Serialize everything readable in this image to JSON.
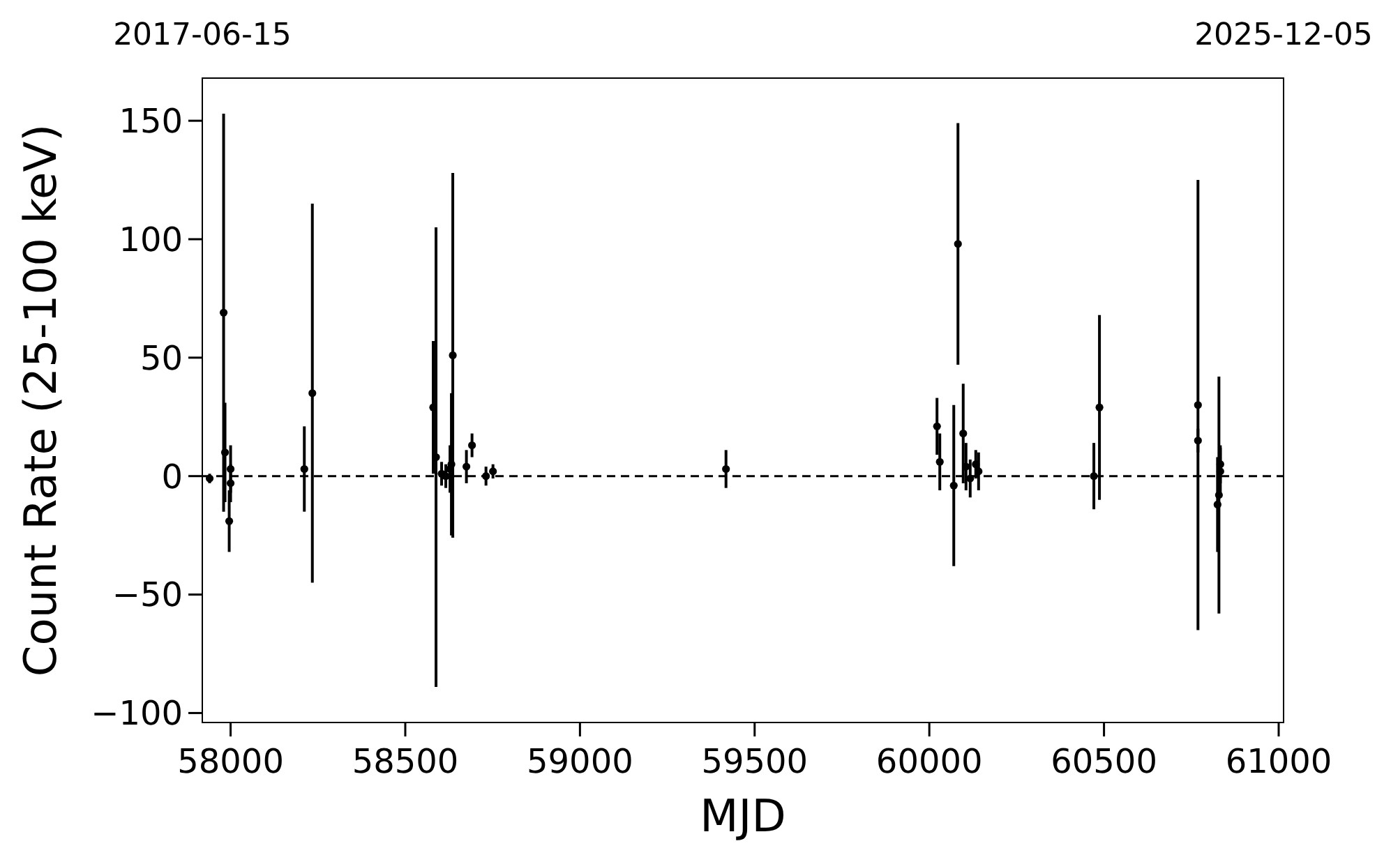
{
  "chart_data": {
    "type": "scatter",
    "xlabel": "MJD",
    "ylabel": "Count Rate (25-100 keV)",
    "xlim": [
      57919,
      61014
    ],
    "ylim": [
      -104,
      168
    ],
    "xticks": [
      58000,
      58500,
      59000,
      59500,
      60000,
      60500,
      61000
    ],
    "yticks": [
      -100,
      -50,
      0,
      50,
      100,
      150
    ],
    "x2lim": [
      "2017-06-15",
      "2025-12-05"
    ],
    "x2ticks": [
      "2017-06-15",
      "2025-12-05"
    ],
    "grid": false,
    "marker": "circle",
    "ref_lines": [
      {
        "axis": "y",
        "value": 0,
        "line_style": "dashed",
        "color": "#000000"
      }
    ],
    "series": [
      {
        "color": "#000000",
        "x": [
          57940,
          57980,
          57984,
          57996,
          58000,
          58000,
          58211,
          58234,
          58580,
          58588,
          58604,
          58616,
          58628,
          58632,
          58636,
          58675,
          58691,
          58731,
          58751,
          59418,
          60022,
          60030,
          60070,
          60082,
          60097,
          60105,
          60117,
          60133,
          60141,
          60471,
          60487,
          60769,
          60769,
          60825,
          60829,
          60833,
          60833
        ],
        "values": [
          -1,
          69,
          10,
          -19,
          -3,
          3,
          3,
          35,
          29,
          8,
          1,
          0,
          3,
          5,
          51,
          4,
          13,
          0,
          2,
          3,
          21,
          6,
          -4,
          98,
          18,
          4,
          -1,
          5,
          2,
          0,
          29,
          30,
          15,
          -12,
          -8,
          5,
          2
        ],
        "errors": [
          2,
          84,
          21,
          13,
          8,
          10,
          18,
          80,
          28,
          97,
          5,
          5,
          10,
          30,
          77,
          7,
          5,
          4,
          3,
          8,
          12,
          12,
          34,
          51,
          21,
          10,
          8,
          6,
          8,
          14,
          39,
          95,
          5,
          20,
          50,
          8,
          10
        ]
      }
    ]
  }
}
